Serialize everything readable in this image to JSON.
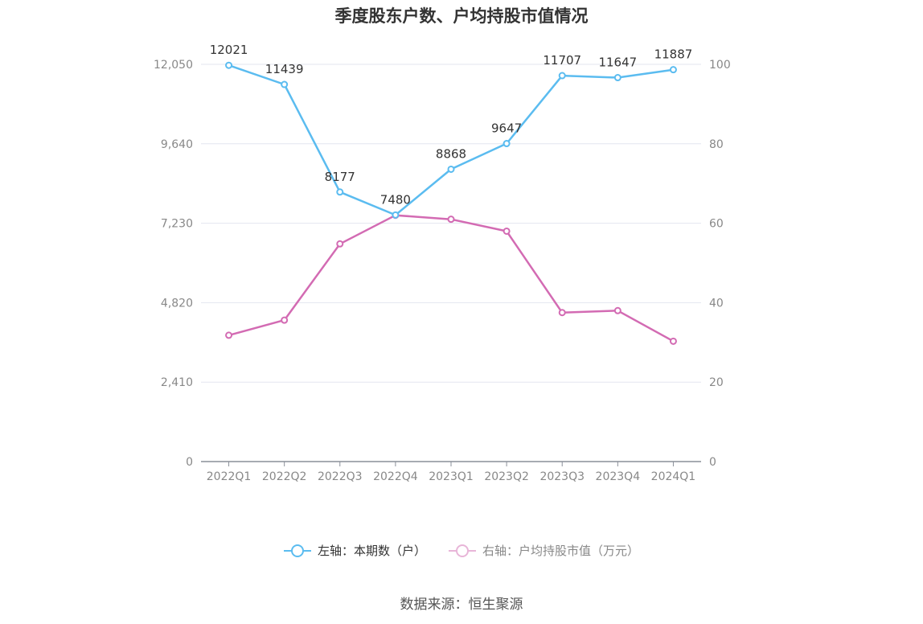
{
  "title": "季度股东户数、户均持股市值情况",
  "chart_data": {
    "type": "line",
    "categories": [
      "2022Q1",
      "2022Q2",
      "2022Q3",
      "2022Q4",
      "2023Q1",
      "2023Q2",
      "2023Q3",
      "2023Q4",
      "2024Q1"
    ],
    "series": [
      {
        "name": "左轴：本期数（户）",
        "axis": "left",
        "color": "#5bbcf0",
        "values": [
          12021,
          11439,
          8177,
          7480,
          8868,
          9647,
          11707,
          11647,
          11887
        ],
        "labels": [
          "12021",
          "11439",
          "8177",
          "7480",
          "8868",
          "9647",
          "11707",
          "11647",
          "11887"
        ]
      },
      {
        "name": "右轴：户均持股市值（万元）",
        "axis": "right",
        "color": "#d36bb3",
        "values": [
          31.8,
          35.6,
          54.8,
          62.0,
          61.0,
          58.0,
          37.5,
          38.0,
          30.3
        ]
      }
    ],
    "y_left": {
      "min": 0,
      "max": 12050,
      "ticks": [
        "0",
        "2,410",
        "4,820",
        "7,230",
        "9,640",
        "12,050"
      ]
    },
    "y_right": {
      "min": 0,
      "max": 100,
      "ticks": [
        "0",
        "20",
        "40",
        "60",
        "80",
        "100"
      ]
    },
    "grid": true,
    "legend_position": "bottom"
  },
  "legend": {
    "left_label": "左轴：本期数（户）",
    "right_label": "右轴：户均持股市值（万元）"
  },
  "source": "数据来源：恒生聚源"
}
